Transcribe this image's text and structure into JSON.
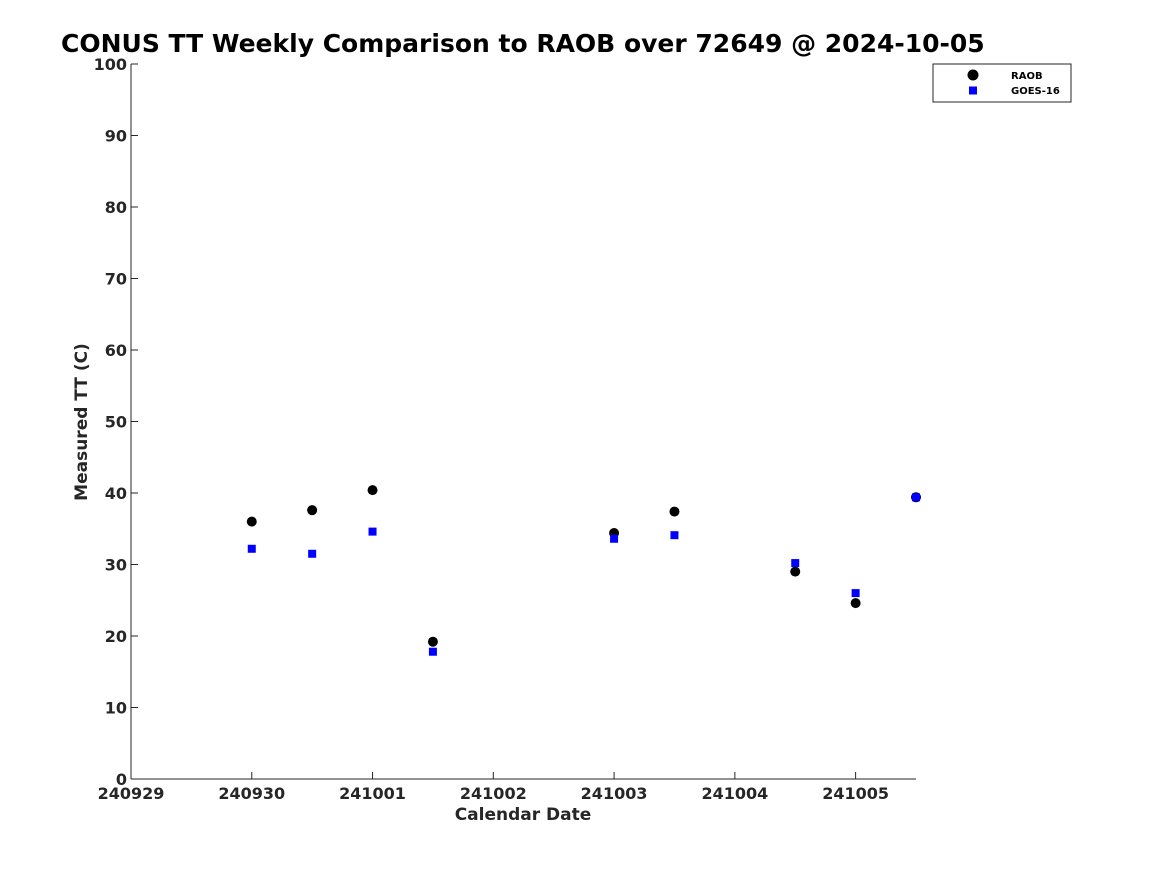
{
  "chart_data": {
    "type": "scatter",
    "title": "CONUS TT Weekly Comparison to RAOB over 72649 @ 2024-10-05",
    "xlabel": "Calendar Date",
    "ylabel": "Measured TT (C)",
    "x_tick_labels": [
      "240929",
      "240930",
      "241001",
      "241002",
      "241003",
      "241004",
      "241005"
    ],
    "x_tick_values": [
      0,
      1,
      2,
      3,
      4,
      5,
      6
    ],
    "xlim": [
      0,
      6.5
    ],
    "ylim": [
      0,
      100
    ],
    "y_ticks": [
      0,
      10,
      20,
      30,
      40,
      50,
      60,
      70,
      80,
      90,
      100
    ],
    "grid": false,
    "legend_position": "top-right",
    "series": [
      {
        "name": "RAOB",
        "marker": "circle",
        "color": "#000000",
        "points": [
          {
            "x": 1.0,
            "y": 36.0
          },
          {
            "x": 1.5,
            "y": 37.6
          },
          {
            "x": 2.0,
            "y": 40.4
          },
          {
            "x": 2.5,
            "y": 19.2
          },
          {
            "x": 4.0,
            "y": 34.4
          },
          {
            "x": 4.5,
            "y": 37.4
          },
          {
            "x": 5.5,
            "y": 29.0
          },
          {
            "x": 6.0,
            "y": 24.6
          },
          {
            "x": 6.5,
            "y": 39.4
          }
        ]
      },
      {
        "name": "GOES-16",
        "marker": "square",
        "color": "#0000ff",
        "points": [
          {
            "x": 1.0,
            "y": 32.2
          },
          {
            "x": 1.5,
            "y": 31.5
          },
          {
            "x": 2.0,
            "y": 34.6
          },
          {
            "x": 2.5,
            "y": 17.8
          },
          {
            "x": 4.0,
            "y": 33.6
          },
          {
            "x": 4.5,
            "y": 34.1
          },
          {
            "x": 5.5,
            "y": 30.2
          },
          {
            "x": 6.0,
            "y": 26.0
          },
          {
            "x": 6.5,
            "y": 39.4
          }
        ]
      }
    ]
  }
}
